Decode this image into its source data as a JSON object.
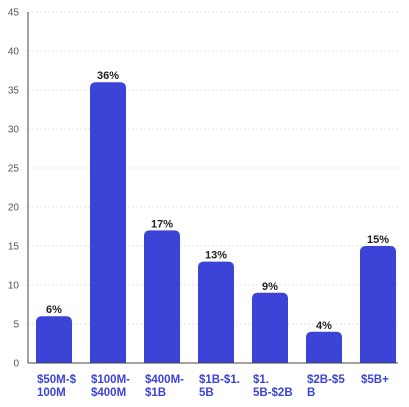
{
  "chart_data": {
    "type": "bar",
    "categories": [
      [
        "$50M-$",
        "100M"
      ],
      [
        "$100M-",
        "$400M"
      ],
      [
        "$400M-",
        "$1B"
      ],
      [
        "$1B-$1.",
        "5B"
      ],
      [
        "$1.",
        "5B-$2B"
      ],
      [
        "$2B-$5",
        "B"
      ],
      [
        "$5B+"
      ]
    ],
    "values": [
      6,
      36,
      17,
      13,
      9,
      4,
      15
    ],
    "data_labels": [
      "6%",
      "36%",
      "17%",
      "13%",
      "9%",
      "4%",
      "15%"
    ],
    "yticks": [
      0,
      5,
      10,
      15,
      20,
      25,
      30,
      35,
      40,
      45
    ],
    "ylim": [
      0,
      45
    ],
    "grid": true,
    "legend": "none",
    "bar_color": "#3b44d6"
  }
}
